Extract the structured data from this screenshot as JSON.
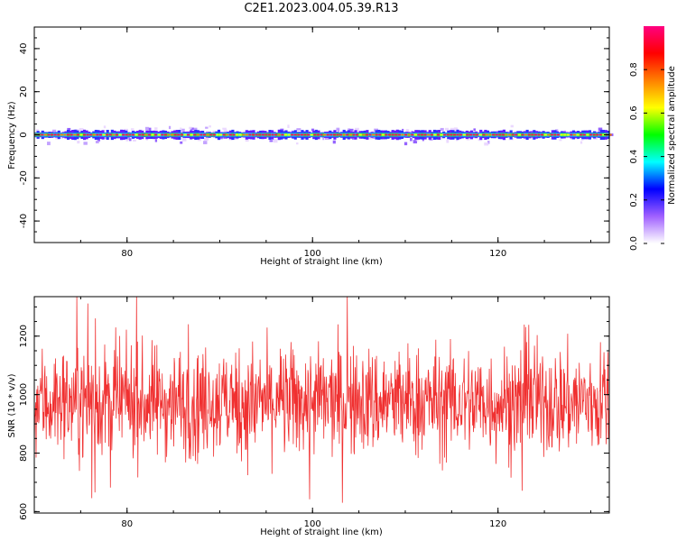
{
  "figure": {
    "title": "C2E1.2023.004.05.39.R13"
  },
  "chart_data": [
    {
      "type": "heatmap",
      "xlabel": "Height of straight line (km)",
      "ylabel": "Frequency (Hz)",
      "xlim": [
        70,
        132
      ],
      "ylim": [
        -50,
        50
      ],
      "xticks": [
        80,
        100,
        120
      ],
      "yticks": [
        -40,
        -20,
        0,
        20,
        40
      ],
      "colorbar": {
        "label": "Normalized spectral amplitude",
        "range": [
          0,
          1
        ],
        "ticks": [
          "0.0",
          "0.2",
          "0.4",
          "0.6",
          "0.8"
        ],
        "colors": [
          "#ffffff",
          "#a060ff",
          "#0000ff",
          "#00ffff",
          "#00ff00",
          "#ffff00",
          "#ff8000",
          "#ff0000",
          "#ff0080"
        ]
      },
      "description_band": {
        "center_hz": 0,
        "half_width_hz": 1.5,
        "max_spread_hz": 6
      },
      "grid": false
    },
    {
      "type": "line",
      "xlabel": "Height of straight line (km)",
      "ylabel": "SNR (10 * v/v)",
      "xlim": [
        70,
        132
      ],
      "ylim": [
        595,
        1335
      ],
      "xticks": [
        80,
        100,
        120
      ],
      "yticks": [
        600,
        800,
        1000,
        1200
      ],
      "series": [
        {
          "color": "#f03030",
          "mean": 975,
          "min": 595,
          "max": 1335,
          "std": 95
        }
      ],
      "grid": false
    }
  ]
}
